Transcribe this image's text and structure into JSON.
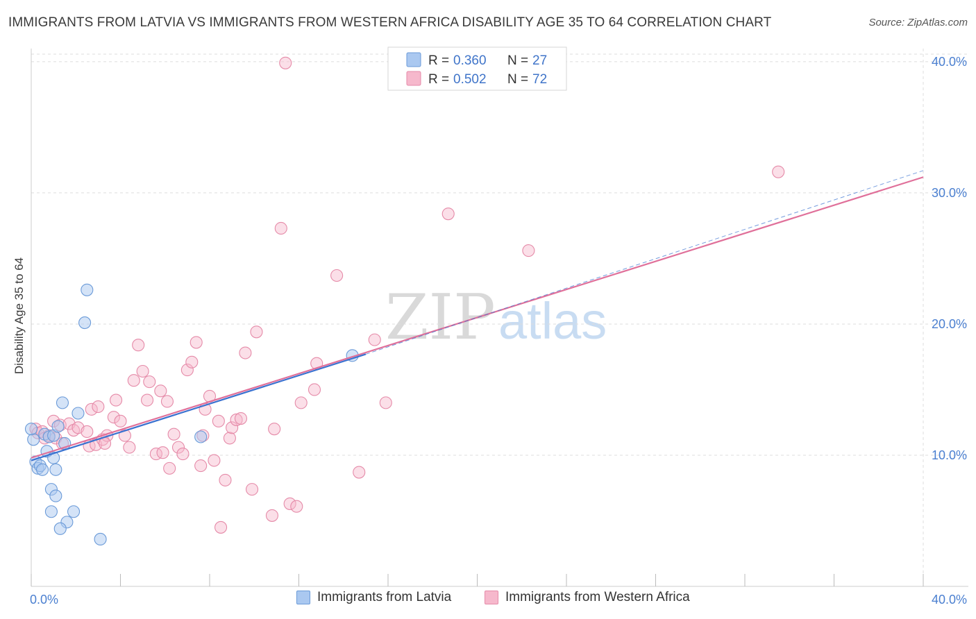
{
  "title": "IMMIGRANTS FROM LATVIA VS IMMIGRANTS FROM WESTERN AFRICA DISABILITY AGE 35 TO 64 CORRELATION CHART",
  "source": "Source: ZipAtlas.com",
  "watermark": {
    "zip": "ZIP",
    "atlas": "atlas"
  },
  "legend": {
    "rows": [
      {
        "r_label": "R =",
        "r_value": "0.360",
        "n_label": "N =",
        "n_value": "27"
      },
      {
        "r_label": "R =",
        "r_value": "0.502",
        "n_label": "N =",
        "n_value": "72"
      }
    ]
  },
  "bottom_legend": {
    "latvia": "Immigrants from Latvia",
    "wafrica": "Immigrants from Western Africa"
  },
  "colors": {
    "latvia_fill": "#aac8f0",
    "latvia_stroke": "#6a9ad8",
    "latvia_line": "#3a72d0",
    "wafrica_fill": "#f6b8cc",
    "wafrica_stroke": "#e58aa8",
    "wafrica_line": "#e0709a",
    "tick_text": "#4a7fd0",
    "grid": "#dddddd"
  },
  "chart_data": {
    "type": "scatter",
    "title": "IMMIGRANTS FROM LATVIA VS IMMIGRANTS FROM WESTERN AFRICA DISABILITY AGE 35 TO 64 CORRELATION CHART",
    "xlabel": "",
    "ylabel": "Disability Age 35 to 64",
    "xlim": [
      0,
      40
    ],
    "ylim": [
      0,
      41
    ],
    "x_tick_labels": [
      "0.0%",
      "40.0%"
    ],
    "y_ticks": [
      10,
      20,
      30,
      40
    ],
    "y_tick_labels": [
      "10.0%",
      "20.0%",
      "30.0%",
      "40.0%"
    ],
    "series": [
      {
        "name": "Immigrants from Latvia",
        "R": 0.36,
        "N": 27,
        "trend": {
          "x0": 0,
          "y0": 9.6,
          "x1": 15.0,
          "y1": 17.7,
          "dash_to_x": 40,
          "dash_to_y": 31.7
        },
        "points": [
          [
            0.1,
            11.2
          ],
          [
            0.2,
            9.5
          ],
          [
            0.3,
            9.0
          ],
          [
            0.4,
            9.2
          ],
          [
            0.5,
            8.9
          ],
          [
            0.6,
            11.6
          ],
          [
            0.7,
            10.3
          ],
          [
            0.8,
            11.4
          ],
          [
            0.9,
            7.4
          ],
          [
            0.9,
            5.7
          ],
          [
            1.0,
            9.8
          ],
          [
            1.0,
            11.5
          ],
          [
            1.1,
            8.9
          ],
          [
            1.1,
            6.9
          ],
          [
            1.2,
            12.2
          ],
          [
            1.4,
            14.0
          ],
          [
            1.5,
            10.9
          ],
          [
            1.6,
            4.9
          ],
          [
            1.9,
            5.7
          ],
          [
            2.1,
            13.2
          ],
          [
            2.5,
            22.6
          ],
          [
            2.4,
            20.1
          ],
          [
            1.3,
            4.4
          ],
          [
            3.1,
            3.6
          ],
          [
            7.6,
            11.4
          ],
          [
            14.4,
            17.6
          ],
          [
            0.0,
            12.0
          ]
        ]
      },
      {
        "name": "Immigrants from Western Africa",
        "R": 0.502,
        "N": 72,
        "trend": {
          "x0": 0,
          "y0": 9.8,
          "x1": 40,
          "y1": 31.2
        },
        "points": [
          [
            0.2,
            12.0
          ],
          [
            0.3,
            11.7
          ],
          [
            0.5,
            11.8
          ],
          [
            0.6,
            11.3
          ],
          [
            0.8,
            11.5
          ],
          [
            1.0,
            12.6
          ],
          [
            1.1,
            11.3
          ],
          [
            1.3,
            12.3
          ],
          [
            1.4,
            10.9
          ],
          [
            1.7,
            12.4
          ],
          [
            1.9,
            11.9
          ],
          [
            2.1,
            12.1
          ],
          [
            2.5,
            11.8
          ],
          [
            2.6,
            10.7
          ],
          [
            2.7,
            13.5
          ],
          [
            2.9,
            10.8
          ],
          [
            3.0,
            13.7
          ],
          [
            3.2,
            11.2
          ],
          [
            3.4,
            11.5
          ],
          [
            3.3,
            10.9
          ],
          [
            3.7,
            12.9
          ],
          [
            3.8,
            14.2
          ],
          [
            4.0,
            12.6
          ],
          [
            4.2,
            11.5
          ],
          [
            4.4,
            10.6
          ],
          [
            4.6,
            15.7
          ],
          [
            4.8,
            18.4
          ],
          [
            5.0,
            16.4
          ],
          [
            5.2,
            14.2
          ],
          [
            5.3,
            15.6
          ],
          [
            5.6,
            10.1
          ],
          [
            5.8,
            14.9
          ],
          [
            5.9,
            10.2
          ],
          [
            6.1,
            14.1
          ],
          [
            6.2,
            9.0
          ],
          [
            6.4,
            11.6
          ],
          [
            6.6,
            10.6
          ],
          [
            6.8,
            10.1
          ],
          [
            7.0,
            16.5
          ],
          [
            7.2,
            17.1
          ],
          [
            7.4,
            18.6
          ],
          [
            7.6,
            9.2
          ],
          [
            7.7,
            11.5
          ],
          [
            7.8,
            13.5
          ],
          [
            8.0,
            14.5
          ],
          [
            8.2,
            9.6
          ],
          [
            8.4,
            12.6
          ],
          [
            8.5,
            4.5
          ],
          [
            8.7,
            8.1
          ],
          [
            8.9,
            11.3
          ],
          [
            9.0,
            12.1
          ],
          [
            9.2,
            12.7
          ],
          [
            9.4,
            12.8
          ],
          [
            9.6,
            17.8
          ],
          [
            9.9,
            7.4
          ],
          [
            10.1,
            19.4
          ],
          [
            10.8,
            5.4
          ],
          [
            10.9,
            12.0
          ],
          [
            11.2,
            27.3
          ],
          [
            11.4,
            39.9
          ],
          [
            11.6,
            6.3
          ],
          [
            11.9,
            6.1
          ],
          [
            12.1,
            14.0
          ],
          [
            12.7,
            15.0
          ],
          [
            12.8,
            17.0
          ],
          [
            13.7,
            23.7
          ],
          [
            14.7,
            8.7
          ],
          [
            15.4,
            18.8
          ],
          [
            15.9,
            14.0
          ],
          [
            18.7,
            28.4
          ],
          [
            22.3,
            25.6
          ],
          [
            33.5,
            31.6
          ]
        ]
      }
    ]
  }
}
